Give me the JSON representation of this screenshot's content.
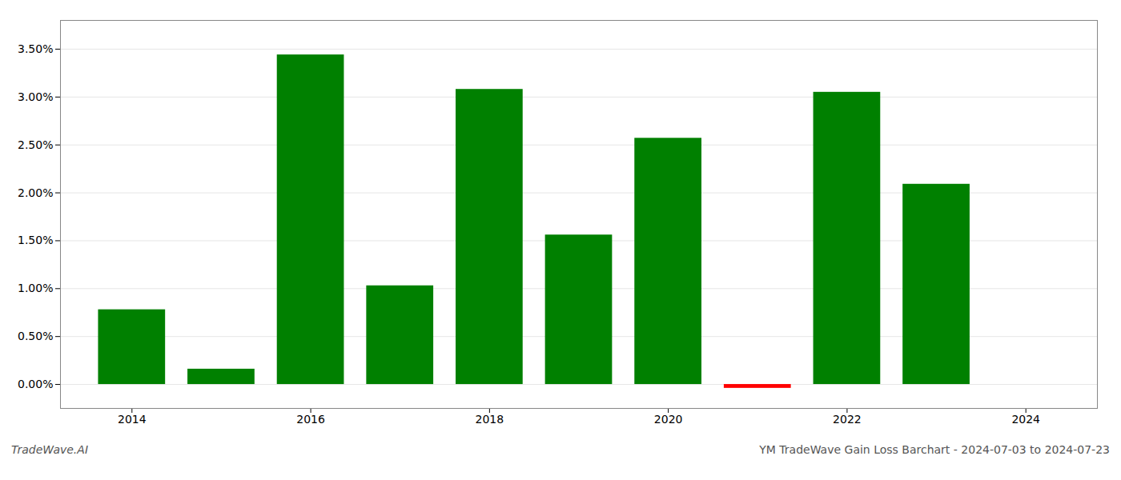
{
  "chart_data": {
    "type": "bar",
    "title": "YM TradeWave Gain Loss Barchart - 2024-07-03 to 2024-07-23",
    "annotations": [
      "TradeWave.AI"
    ],
    "x": [
      2014,
      2015,
      2016,
      2017,
      2018,
      2019,
      2020,
      2021,
      2022,
      2023
    ],
    "values": [
      0.0078,
      0.0016,
      0.0344,
      0.0103,
      0.0308,
      0.0156,
      0.0257,
      -0.0004,
      0.0305,
      0.0209
    ],
    "colors": [
      "#008000",
      "#008000",
      "#008000",
      "#008000",
      "#008000",
      "#008000",
      "#008000",
      "#ff0000",
      "#008000",
      "#008000"
    ],
    "xlim": [
      2013.2,
      2024.8
    ],
    "xticks": [
      2014,
      2016,
      2018,
      2020,
      2022,
      2024
    ],
    "ylim": [
      -0.0025,
      0.038
    ],
    "yticks": [
      {
        "value": 0.0,
        "label": "0.00%"
      },
      {
        "value": 0.005,
        "label": "0.50%"
      },
      {
        "value": 0.01,
        "label": "1.00%"
      },
      {
        "value": 0.015,
        "label": "1.50%"
      },
      {
        "value": 0.02,
        "label": "2.00%"
      },
      {
        "value": 0.025,
        "label": "2.50%"
      },
      {
        "value": 0.03,
        "label": "3.00%"
      },
      {
        "value": 0.035,
        "label": "3.50%"
      }
    ],
    "grid": true
  }
}
